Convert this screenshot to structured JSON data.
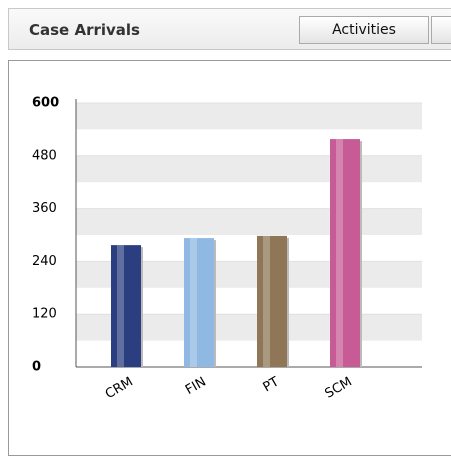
{
  "header": {
    "title": "Case Arrivals",
    "button": "Activities"
  },
  "chart_data": {
    "type": "bar",
    "categories": [
      "CRM",
      "FIN",
      "PT",
      "SCM"
    ],
    "values": [
      277,
      293,
      298,
      518
    ],
    "colors": [
      "#2b3f80",
      "#8fb9e2",
      "#8f7656",
      "#c75b95"
    ],
    "ylim": [
      0,
      600
    ],
    "yticks": [
      0,
      120,
      240,
      360,
      480,
      600
    ],
    "grid": true
  }
}
